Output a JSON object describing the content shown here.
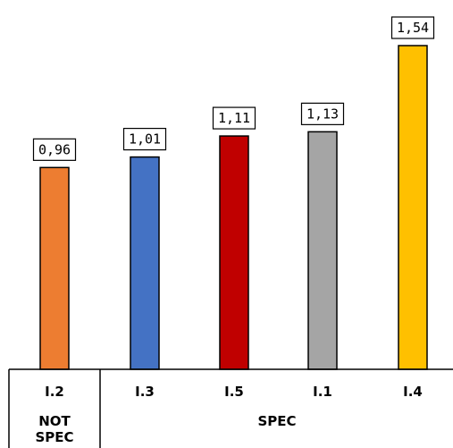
{
  "chart_data": {
    "type": "bar",
    "categories": [
      "I.2",
      "I.3",
      "I.5",
      "I.1",
      "I.4"
    ],
    "values": [
      0.96,
      1.01,
      1.11,
      1.13,
      1.54
    ],
    "data_labels": [
      "0,96",
      "1,01",
      "1,11",
      "1,13",
      "1,54"
    ],
    "colors": [
      "#ED7D31",
      "#4472C4",
      "#C00000",
      "#A5A5A5",
      "#FFC000"
    ],
    "groups": [
      {
        "label": "NOT SPEC",
        "lines": [
          "NOT",
          "SPEC"
        ],
        "categories": [
          "I.2"
        ]
      },
      {
        "label": "SPEC",
        "lines": [
          "SPEC"
        ],
        "categories": [
          "I.3",
          "I.5",
          "I.1",
          "I.4"
        ]
      }
    ],
    "title": "",
    "xlabel": "",
    "ylabel": "",
    "ylim": [
      0,
      1.54
    ],
    "grid": false,
    "legend": "none"
  }
}
